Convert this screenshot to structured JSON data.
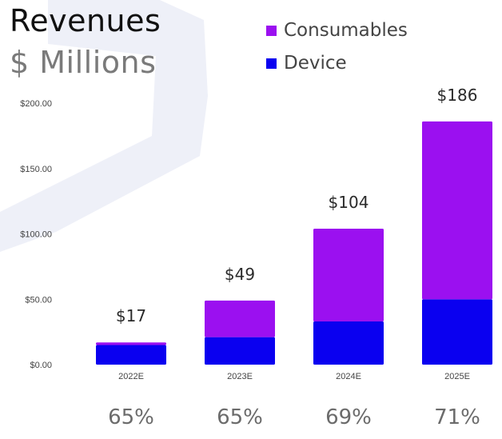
{
  "header": {
    "title_line1": "Revenues",
    "title_line2": "$ Millions"
  },
  "legend": {
    "items": [
      {
        "label": "Consumables",
        "color": "#9b10f0"
      },
      {
        "label": "Device",
        "color": "#0a00f0"
      }
    ]
  },
  "chart_data": {
    "type": "bar",
    "stacked": true,
    "categories": [
      "2022E",
      "2023E",
      "2024E",
      "2025E"
    ],
    "series": [
      {
        "name": "Device",
        "color": "#0a00f0",
        "values": [
          15,
          21,
          33,
          50
        ]
      },
      {
        "name": "Consumables",
        "color": "#9b10f0",
        "values": [
          2,
          28,
          71,
          136
        ]
      }
    ],
    "totals": [
      "$17",
      "$49",
      "$104",
      "$186"
    ],
    "percentages": [
      "65%",
      "65%",
      "69%",
      "71%"
    ],
    "yticks": [
      0,
      50,
      100,
      150,
      200
    ],
    "ytick_labels": [
      "$0.00",
      "$50.00",
      "$100.00",
      "$150.00",
      "$200.00"
    ],
    "ylim": [
      0,
      200
    ],
    "title": "Revenues $ Millions",
    "xlabel": "",
    "ylabel": "",
    "grid": false,
    "legend_position": "top-right"
  }
}
